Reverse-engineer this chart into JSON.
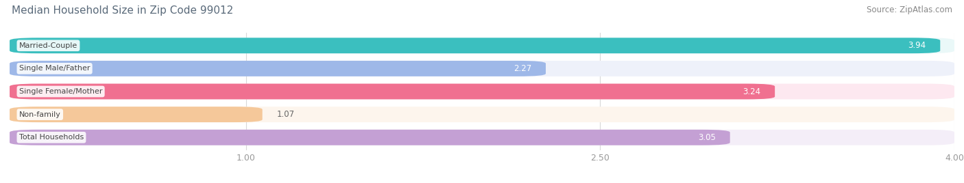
{
  "title": "Median Household Size in Zip Code 99012",
  "source": "Source: ZipAtlas.com",
  "categories": [
    "Married-Couple",
    "Single Male/Father",
    "Single Female/Mother",
    "Non-family",
    "Total Households"
  ],
  "values": [
    3.94,
    2.27,
    3.24,
    1.07,
    3.05
  ],
  "bar_colors": [
    "#3bbfbf",
    "#9eb8e8",
    "#f07090",
    "#f5c89a",
    "#c4a0d4"
  ],
  "bar_bg_colors": [
    "#eaf8f8",
    "#eef1fa",
    "#fde8f0",
    "#fdf5ed",
    "#f4eef8"
  ],
  "data_xlim_min": 0.0,
  "data_xlim_max": 4.0,
  "xticks": [
    1.0,
    2.5,
    4.0
  ],
  "value_fontsize": 8.5,
  "label_fontsize": 8.0,
  "title_fontsize": 11,
  "source_fontsize": 8.5,
  "bar_height": 0.68,
  "value_inside_threshold": 1.8,
  "background_color": "#ffffff",
  "grid_color": "#d8d8d8",
  "title_color": "#5a6a7a",
  "source_color": "#888888",
  "tick_color": "#999999"
}
